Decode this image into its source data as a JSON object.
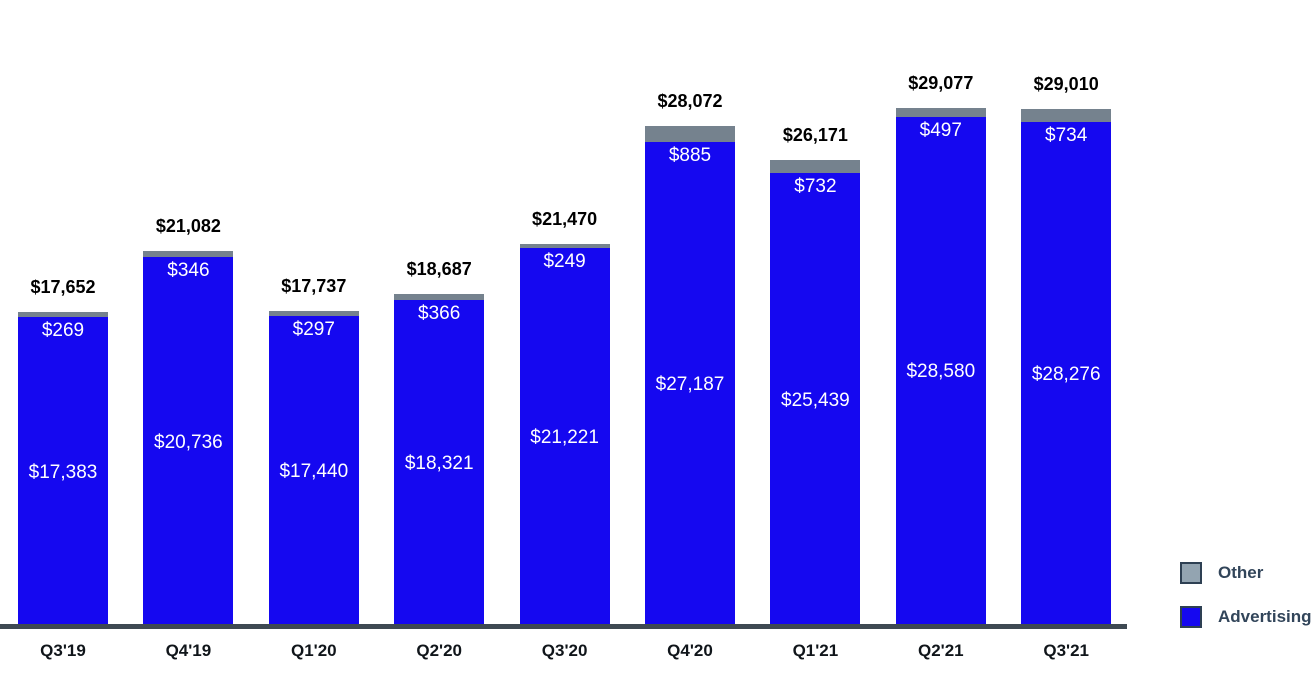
{
  "chart_data": {
    "type": "bar",
    "stacked": true,
    "title": "",
    "categories": [
      "Q3'19",
      "Q4'19",
      "Q1'20",
      "Q2'20",
      "Q3'20",
      "Q4'20",
      "Q1'21",
      "Q2'21",
      "Q3'21"
    ],
    "series": [
      {
        "name": "Advertising",
        "color": "#1508f0",
        "values": [
          17383,
          20736,
          17440,
          18321,
          21221,
          27187,
          25439,
          28580,
          28276
        ],
        "labels": [
          "$17,383",
          "$20,736",
          "$17,440",
          "$18,321",
          "$21,221",
          "$27,187",
          "$25,439",
          "$28,580",
          "$28,276"
        ]
      },
      {
        "name": "Other",
        "color": "#75828e",
        "values": [
          269,
          346,
          297,
          366,
          249,
          885,
          732,
          497,
          734
        ],
        "labels": [
          "$269",
          "$346",
          "$297",
          "$366",
          "$249",
          "$885",
          "$732",
          "$497",
          "$734"
        ]
      }
    ],
    "totals": [
      17652,
      21082,
      17737,
      18687,
      21470,
      28072,
      26171,
      29077,
      29010
    ],
    "total_labels": [
      "$17,652",
      "$21,082",
      "$17,737",
      "$18,687",
      "$21,470",
      "$28,072",
      "$26,171",
      "$29,077",
      "$29,010"
    ],
    "ylim": [
      0,
      29077
    ],
    "grid": false,
    "legend_position": "bottom-right",
    "legend": [
      {
        "label": "Other",
        "swatch_color": "#93a4b1",
        "border_color": "#2e4053"
      },
      {
        "label": "Advertising",
        "swatch_color": "#1508f0",
        "border_color": "#2e4053"
      }
    ]
  },
  "colors": {
    "advertising_segment": "#1508f0",
    "other_segment": "#75828e",
    "axis_line": "#3e4953",
    "total_label": "#000000",
    "inside_label": "#ffffff",
    "tick_label": "#10151a",
    "legend_text": "#32455a"
  }
}
